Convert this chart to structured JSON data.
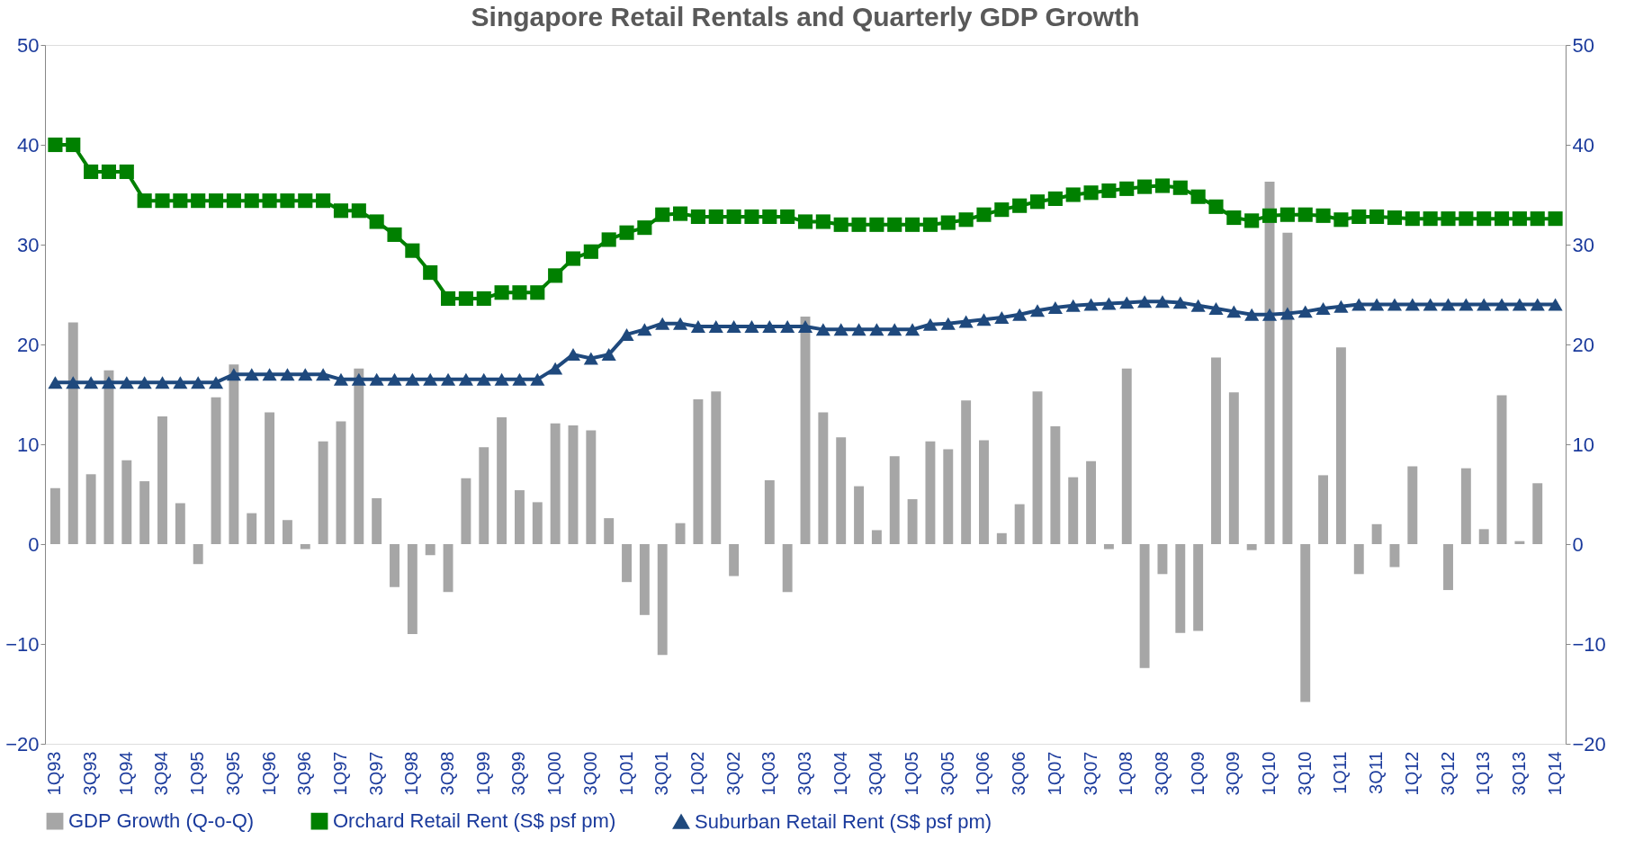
{
  "chart_data": {
    "type": "bar",
    "title": "Singapore Retail Rentals and Quarterly GDP Growth",
    "categories": [
      "1Q93",
      null,
      "3Q93",
      null,
      "1Q94",
      null,
      "3Q94",
      null,
      "1Q95",
      null,
      "3Q95",
      null,
      "1Q96",
      null,
      "3Q96",
      null,
      "1Q97",
      null,
      "3Q97",
      null,
      "1Q98",
      null,
      "3Q98",
      null,
      "1Q99",
      null,
      "3Q99",
      null,
      "1Q00",
      null,
      "3Q00",
      null,
      "1Q01",
      null,
      "3Q01",
      null,
      "1Q02",
      null,
      "3Q02",
      null,
      "1Q03",
      null,
      "3Q03",
      null,
      "1Q04",
      null,
      "3Q04",
      null,
      "1Q05",
      null,
      "3Q05",
      null,
      "1Q06",
      null,
      "3Q06",
      null,
      "1Q07",
      null,
      "3Q07",
      null,
      "1Q08",
      null,
      "3Q08",
      null,
      "1Q09",
      null,
      "3Q09",
      null,
      "1Q10",
      null,
      "3Q10",
      null,
      "1Q11",
      null,
      "3Q11",
      null,
      "1Q12",
      null,
      "3Q12",
      null,
      "1Q13",
      null,
      "3Q13",
      null,
      "1Q14"
    ],
    "series": [
      {
        "name": "GDP Growth (Q-o-Q)",
        "axis": "y2",
        "color": "#a6a6a6",
        "values": [
          5.6,
          22.2,
          7.0,
          17.4,
          8.4,
          6.3,
          12.8,
          4.1,
          -2.0,
          14.7,
          18.0,
          3.1,
          13.2,
          2.4,
          -0.5,
          10.3,
          12.3,
          17.6,
          4.6,
          -4.3,
          -9.0,
          -1.1,
          -4.8,
          6.6,
          9.7,
          12.7,
          5.4,
          4.2,
          12.1,
          11.9,
          11.4,
          2.6,
          -3.8,
          -7.1,
          -11.1,
          2.1,
          14.5,
          15.3,
          -3.2,
          null,
          6.4,
          -4.8,
          22.8,
          13.2,
          10.7,
          5.8,
          1.4,
          8.8,
          4.5,
          10.3,
          9.5,
          14.4,
          10.4,
          1.1,
          4.0,
          15.3,
          11.8,
          6.7,
          8.3,
          -0.5,
          17.6,
          -12.4,
          -3.0,
          -8.9,
          -8.7,
          18.7,
          15.2,
          -0.6,
          36.3,
          31.2,
          -15.8,
          6.9,
          19.7,
          -3.0,
          2.0,
          -2.3,
          7.8,
          0.0,
          -4.6,
          7.6,
          1.5,
          14.9,
          0.3,
          6.1,
          0.0
        ]
      },
      {
        "name": "Orchard Retail Rent (S$ psf pm)",
        "type": "line",
        "marker": "square",
        "color": "#008000",
        "values": [
          40.0,
          40.0,
          37.3,
          37.3,
          37.3,
          34.4,
          34.4,
          34.4,
          34.4,
          34.4,
          34.4,
          34.4,
          34.4,
          34.4,
          34.4,
          34.4,
          33.4,
          33.4,
          32.3,
          31.0,
          29.4,
          27.2,
          24.6,
          24.6,
          24.6,
          25.2,
          25.2,
          25.2,
          26.9,
          28.6,
          29.3,
          30.5,
          31.2,
          31.7,
          33.0,
          33.1,
          32.8,
          32.8,
          32.8,
          32.8,
          32.8,
          32.8,
          32.3,
          32.3,
          32.0,
          32.0,
          32.0,
          32.0,
          32.0,
          32.0,
          32.2,
          32.5,
          33.0,
          33.5,
          33.9,
          34.3,
          34.6,
          35.0,
          35.2,
          35.4,
          35.6,
          35.8,
          35.9,
          35.7,
          34.8,
          33.8,
          32.7,
          32.4,
          32.9,
          33.0,
          33.0,
          32.9,
          32.5,
          32.8,
          32.8,
          32.7,
          32.6,
          32.6,
          32.6,
          32.6,
          32.6,
          32.6,
          32.6,
          32.6,
          32.6
        ]
      },
      {
        "name": "Suburban Retail Rent (S$ psf pm)",
        "type": "line",
        "marker": "triangle",
        "color": "#1f497d",
        "values": [
          16.2,
          16.2,
          16.2,
          16.2,
          16.2,
          16.2,
          16.2,
          16.2,
          16.2,
          16.2,
          17.0,
          17.0,
          17.0,
          17.0,
          17.0,
          17.0,
          16.5,
          16.5,
          16.5,
          16.5,
          16.5,
          16.5,
          16.5,
          16.5,
          16.5,
          16.5,
          16.5,
          16.5,
          17.6,
          19.0,
          18.6,
          19.0,
          21.0,
          21.5,
          22.1,
          22.1,
          21.8,
          21.8,
          21.8,
          21.8,
          21.8,
          21.8,
          21.8,
          21.5,
          21.5,
          21.5,
          21.5,
          21.5,
          21.5,
          22.0,
          22.1,
          22.3,
          22.5,
          22.7,
          23.0,
          23.4,
          23.7,
          23.9,
          24.0,
          24.1,
          24.2,
          24.3,
          24.3,
          24.2,
          23.9,
          23.6,
          23.3,
          23.0,
          23.0,
          23.1,
          23.3,
          23.6,
          23.8,
          24.0,
          24.0,
          24.0,
          24.0,
          24.0,
          24.0,
          24.0,
          24.0,
          24.0,
          24.0,
          24.0,
          24.0
        ]
      }
    ],
    "ylim": [
      -20,
      50
    ],
    "yticks": [
      -20,
      -10,
      0,
      10,
      20,
      30,
      40,
      50
    ],
    "y2lim": [
      -20,
      50
    ],
    "y2ticks": [
      -20,
      -10,
      0,
      10,
      20,
      30,
      40,
      50
    ],
    "grid": false,
    "legend": "bottom"
  }
}
